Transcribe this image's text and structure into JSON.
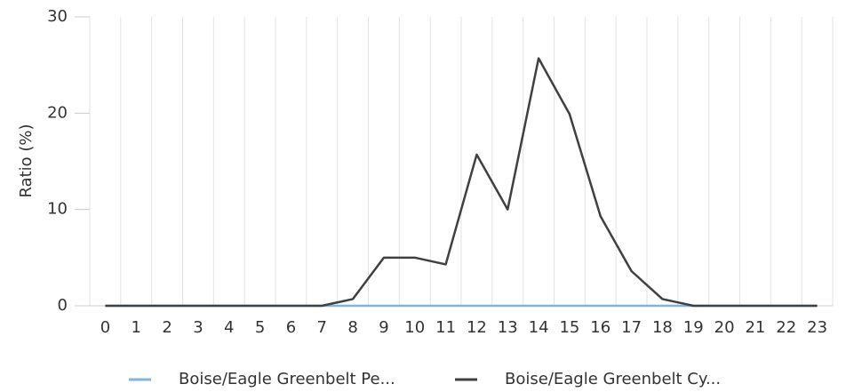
{
  "chart_data": {
    "type": "line",
    "y_label": "Ratio (%)",
    "categories": [
      "0",
      "1",
      "2",
      "3",
      "4",
      "5",
      "6",
      "7",
      "8",
      "9",
      "10",
      "11",
      "12",
      "13",
      "14",
      "15",
      "16",
      "17",
      "18",
      "19",
      "20",
      "21",
      "22",
      "23"
    ],
    "series": [
      {
        "name": "Boise/Eagle Greenbelt Pe...",
        "color": "#7fb3e6",
        "values": [
          0,
          0,
          0,
          0,
          0,
          0,
          0,
          0,
          0,
          0,
          0,
          0,
          0,
          0,
          0,
          0,
          0,
          0,
          0,
          0,
          0,
          0,
          0,
          0
        ]
      },
      {
        "name": "Boise/Eagle Greenbelt Cy...",
        "color": "#404040",
        "values": [
          0,
          0,
          0,
          0,
          0,
          0,
          0,
          0,
          0.7,
          5.0,
          5.0,
          4.3,
          15.7,
          10.0,
          25.7,
          19.9,
          9.3,
          3.6,
          0.7,
          0,
          0,
          0,
          0,
          0
        ]
      }
    ],
    "ylim": [
      0,
      30
    ],
    "yticks": [
      0,
      10,
      20,
      30
    ],
    "grid": "x",
    "legend": "bottom"
  }
}
